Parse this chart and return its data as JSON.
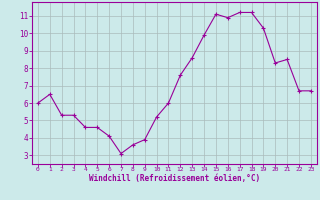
{
  "x": [
    0,
    1,
    2,
    3,
    4,
    5,
    6,
    7,
    8,
    9,
    10,
    11,
    12,
    13,
    14,
    15,
    16,
    17,
    18,
    19,
    20,
    21,
    22,
    23
  ],
  "y": [
    6.0,
    6.5,
    5.3,
    5.3,
    4.6,
    4.6,
    4.1,
    3.1,
    3.6,
    3.9,
    5.2,
    6.0,
    7.6,
    8.6,
    9.9,
    11.1,
    10.9,
    11.2,
    11.2,
    10.3,
    8.3,
    8.5,
    6.7,
    6.7
  ],
  "line_color": "#990099",
  "marker": "P",
  "marker_size": 2.5,
  "bg_color": "#cceaea",
  "grid_color": "#aabbbb",
  "xlabel": "Windchill (Refroidissement éolien,°C)",
  "xlabel_color": "#990099",
  "tick_color": "#990099",
  "ylim": [
    2.5,
    11.8
  ],
  "xlim": [
    -0.5,
    23.5
  ],
  "yticks": [
    3,
    4,
    5,
    6,
    7,
    8,
    9,
    10,
    11
  ],
  "xticks": [
    0,
    1,
    2,
    3,
    4,
    5,
    6,
    7,
    8,
    9,
    10,
    11,
    12,
    13,
    14,
    15,
    16,
    17,
    18,
    19,
    20,
    21,
    22,
    23
  ],
  "spine_color": "#990099",
  "figsize": [
    3.2,
    2.0
  ],
  "dpi": 100
}
